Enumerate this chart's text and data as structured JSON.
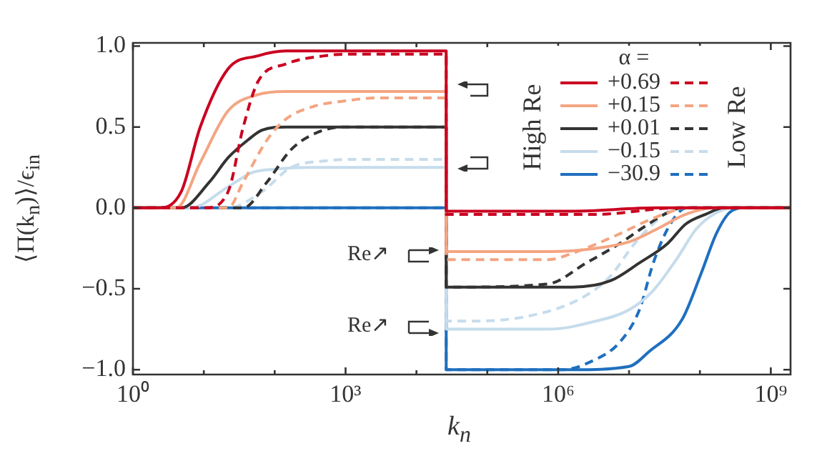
{
  "chart_data": {
    "type": "line",
    "xlabel": "k$_{n}$",
    "ylabel": "⟨Π(k$_{n}$)⟩/ϵ$_{in}$",
    "legend_title": "α =",
    "legend": "top right",
    "grid": false,
    "log": "x",
    "xlim": [
      1,
      1900000000
    ],
    "ylim": [
      -1.03,
      1.02
    ],
    "xticks": [
      {
        "value": 1,
        "label": "10⁰"
      },
      {
        "value": 10,
        "label": null
      },
      {
        "value": 100,
        "label": null
      },
      {
        "value": 1000,
        "label": "10³"
      },
      {
        "value": 10000,
        "label": null
      },
      {
        "value": 100000,
        "label": null
      },
      {
        "value": 1000000,
        "label": "10⁶"
      },
      {
        "value": 10000000,
        "label": null
      },
      {
        "value": 100000000,
        "label": null
      },
      {
        "value": 1000000000,
        "label": "10⁹"
      }
    ],
    "yticks": [
      {
        "value": -1,
        "label": "−1.0"
      },
      {
        "value": -0.5,
        "label": "−0.5"
      },
      {
        "value": 0,
        "label": "0.0"
      },
      {
        "value": 0.5,
        "label": "0.5"
      },
      {
        "value": 1,
        "label": "1.0"
      }
    ],
    "annotations": [
      "High Re",
      "Low Re",
      "Re↗",
      "Re↗"
    ],
    "series": [
      {
        "name": "+0.69",
        "color": "#ca0020",
        "line_style": "solid",
        "x": [
          1,
          2.2,
          4.8,
          8.9,
          22,
          58,
          145,
          400,
          26300,
          26300,
          1500000,
          25000000,
          1900000000
        ],
        "values": [
          0,
          0,
          0.1,
          0.5,
          0.86,
          0.94,
          0.97,
          0.97,
          0.97,
          -0.02,
          -0.02,
          0,
          0
        ]
      },
      {
        "color": "#ca0020",
        "line_style": "dashed",
        "x": [
          1,
          10.5,
          22,
          36,
          58,
          145,
          500,
          1000,
          26300,
          26300,
          3400000,
          48000000,
          1900000000
        ],
        "values": [
          0,
          0,
          0.1,
          0.5,
          0.78,
          0.89,
          0.94,
          0.95,
          0.95,
          -0.04,
          -0.04,
          0,
          0
        ]
      },
      {
        "name": "+0.15",
        "color": "#f4a582",
        "line_style": "solid",
        "x": [
          1,
          4.1,
          8.9,
          22,
          58,
          145,
          26300,
          26300,
          720000,
          3400000,
          10000000,
          25000000,
          63000000,
          160000000,
          1900000000
        ],
        "values": [
          0,
          0,
          0.28,
          0.6,
          0.7,
          0.72,
          0.72,
          -0.27,
          -0.27,
          -0.25,
          -0.21,
          -0.13,
          -0.04,
          0,
          0
        ]
      },
      {
        "color": "#f4a582",
        "line_style": "dashed",
        "x": [
          1,
          22,
          36,
          78,
          145,
          370,
          930,
          3000,
          26300,
          26300,
          720000,
          1600000,
          7400000,
          16000000,
          35000000,
          63000000,
          1900000000
        ],
        "values": [
          0,
          0,
          0.16,
          0.42,
          0.55,
          0.63,
          0.66,
          0.68,
          0.68,
          -0.32,
          -0.32,
          -0.28,
          -0.16,
          -0.09,
          -0.03,
          0,
          0
        ]
      },
      {
        "name": "+0.01",
        "color": "#333333",
        "line_style": "solid",
        "x": [
          1,
          4.8,
          12,
          22,
          42,
          66,
          145,
          26300,
          26300,
          1600000,
          5500000,
          14000000,
          35000000,
          63000000,
          120000000,
          220000000,
          1900000000
        ],
        "values": [
          0,
          0,
          0.16,
          0.31,
          0.42,
          0.48,
          0.5,
          0.5,
          -0.49,
          -0.49,
          -0.45,
          -0.34,
          -0.22,
          -0.1,
          -0.04,
          0,
          0
        ]
      },
      {
        "color": "#333333",
        "line_style": "dashed",
        "x": [
          1,
          36,
          78,
          170,
          370,
          930,
          26300,
          26300,
          720000,
          2500000,
          7400000,
          16000000,
          35000000,
          56000000,
          1900000000
        ],
        "values": [
          0,
          0,
          0.16,
          0.36,
          0.46,
          0.5,
          0.5,
          -0.49,
          -0.47,
          -0.34,
          -0.22,
          -0.12,
          -0.03,
          0,
          0
        ]
      },
      {
        "name": "−0.15",
        "color": "#c6dcec",
        "line_style": "solid",
        "x": [
          1,
          6.5,
          22,
          49,
          107,
          300,
          26300,
          26300,
          720000,
          3400000,
          10000000,
          22000000,
          48000000,
          89000000,
          170000000,
          310000000,
          1900000000
        ],
        "values": [
          0,
          0,
          0.13,
          0.22,
          0.24,
          0.25,
          0.25,
          -0.75,
          -0.75,
          -0.7,
          -0.63,
          -0.51,
          -0.31,
          -0.13,
          -0.03,
          0,
          0
        ]
      },
      {
        "color": "#c6dcec",
        "line_style": "dashed",
        "x": [
          1,
          22,
          66,
          170,
          500,
          1500,
          26300,
          26300,
          71000,
          720000,
          2500000,
          5500000,
          12000000,
          26000000,
          48000000,
          1900000000
        ],
        "values": [
          0,
          0,
          0.1,
          0.25,
          0.29,
          0.3,
          0.3,
          -0.7,
          -0.7,
          -0.64,
          -0.54,
          -0.42,
          -0.22,
          -0.07,
          0,
          0
        ]
      },
      {
        "name": "−30.9",
        "color": "#1f6fbf",
        "line_style": "solid",
        "x": [
          1,
          26300,
          26300,
          1600000,
          10000000,
          19000000,
          56000000,
          105000000,
          170000000,
          260000000,
          430000000,
          1900000000
        ],
        "values": [
          0,
          0,
          -1,
          -1,
          -0.98,
          -0.89,
          -0.69,
          -0.4,
          -0.16,
          -0.03,
          0,
          0
        ]
      },
      {
        "color": "#1f6fbf",
        "line_style": "dashed",
        "x": [
          1,
          26300,
          26300,
          1150000,
          2900000,
          7400000,
          14000000,
          22000000,
          35000000,
          56000000,
          70000000,
          1900000000
        ],
        "values": [
          0,
          0,
          -1,
          -1,
          -0.95,
          -0.83,
          -0.63,
          -0.34,
          -0.13,
          -0.01,
          0,
          0
        ]
      }
    ]
  }
}
